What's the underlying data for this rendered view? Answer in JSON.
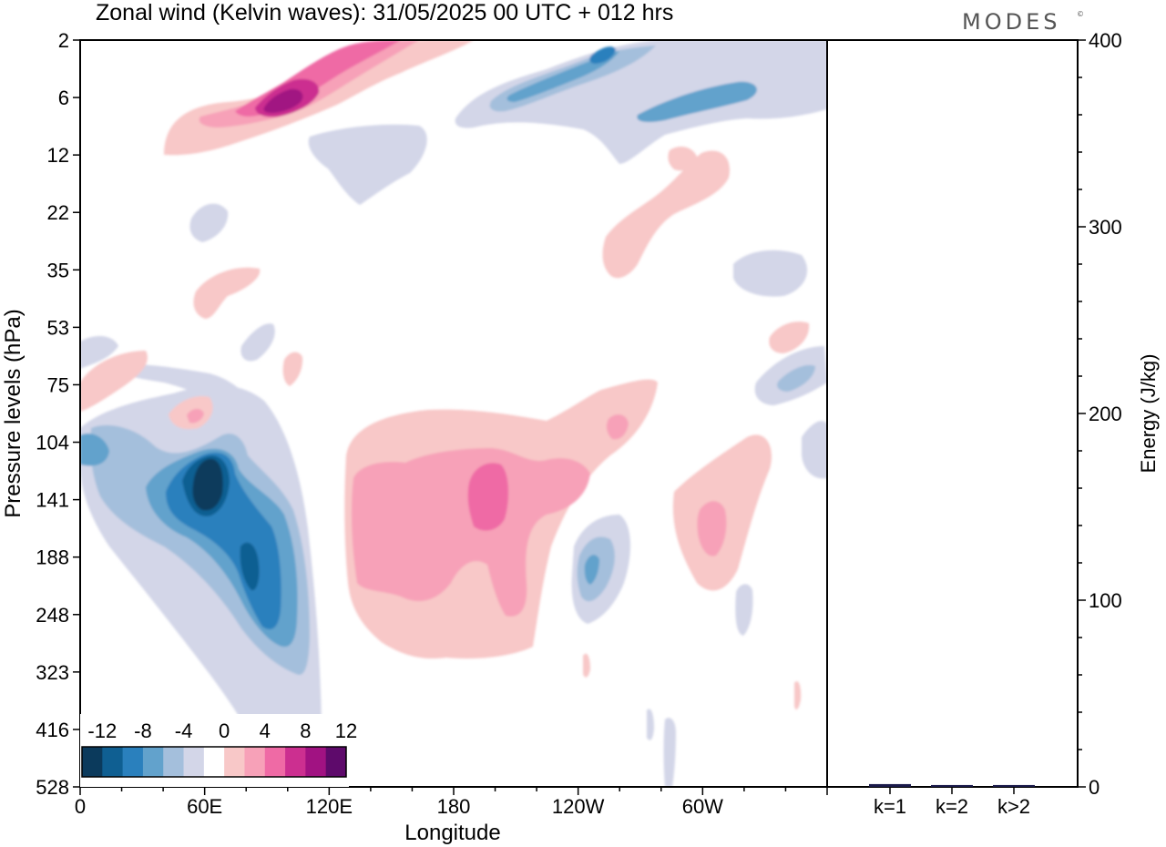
{
  "title": "Zonal wind (Kelvin waves):  31/05/2025  00 UTC  + 012 hrs",
  "brand": "MODES",
  "brand_mark": "©",
  "chart_data": [
    {
      "type": "heatmap",
      "title": "Zonal wind (Kelvin waves):  31/05/2025  00 UTC  + 012 hrs",
      "xlabel": "Longitude",
      "ylabel": "Pressure levels (hPa)",
      "x_ticks": [
        "0",
        "60E",
        "120E",
        "180",
        "120W",
        "60W"
      ],
      "y_ticks": [
        "2",
        "6",
        "12",
        "22",
        "35",
        "53",
        "75",
        "104",
        "141",
        "188",
        "248",
        "323",
        "416",
        "528"
      ],
      "colorbar": {
        "tick_labels": [
          "-12",
          "-8",
          "-4",
          "0",
          "4",
          "8",
          "12"
        ],
        "colors": [
          "#0b3a5c",
          "#0f5f92",
          "#2a80bd",
          "#62a2cc",
          "#a4bfdc",
          "#d3d6e8",
          "#ffffff",
          "#f8c8c8",
          "#f7a1b8",
          "#ef6aa5",
          "#cc2f90",
          "#a11282",
          "#5e0a6b"
        ]
      },
      "features": [
        {
          "sign": "negative",
          "lon_range": [
            "50E",
            "80E"
          ],
          "level_range_hPa": [
            104,
            188
          ],
          "max_level": -12
        },
        {
          "sign": "negative",
          "lon_range": [
            "40E",
            "115E"
          ],
          "level_range_hPa": [
            75,
            416
          ],
          "max_level": -8
        },
        {
          "sign": "positive",
          "lon_range": [
            "55E",
            "95E"
          ],
          "level_range_hPa": [
            2,
            10
          ],
          "max_level": 12
        },
        {
          "sign": "positive",
          "lon_range": [
            "130E",
            "140W"
          ],
          "level_range_hPa": [
            100,
            323
          ],
          "max_level": 8
        },
        {
          "sign": "negative",
          "lon_range": [
            "160W",
            "70W"
          ],
          "level_range_hPa": [
            2,
            12
          ],
          "max_level": -8
        },
        {
          "sign": "positive",
          "lon_range": [
            "120W",
            "50W"
          ],
          "level_range_hPa": [
            75,
            248
          ],
          "max_level": 4
        },
        {
          "sign": "negative",
          "lon_range": [
            "115W",
            "95W"
          ],
          "level_range_hPa": [
            141,
            248
          ],
          "max_level": -8
        }
      ]
    },
    {
      "type": "bar",
      "categories": [
        "k=1",
        "k=2",
        "k>2"
      ],
      "values": [
        1.5,
        1.0,
        1.0
      ],
      "ylabel": "Energy (J/kg)",
      "ylim": [
        0,
        400
      ],
      "y_ticks": [
        "0",
        "100",
        "200",
        "300",
        "400"
      ],
      "bar_color": "#1a1a4a"
    }
  ]
}
